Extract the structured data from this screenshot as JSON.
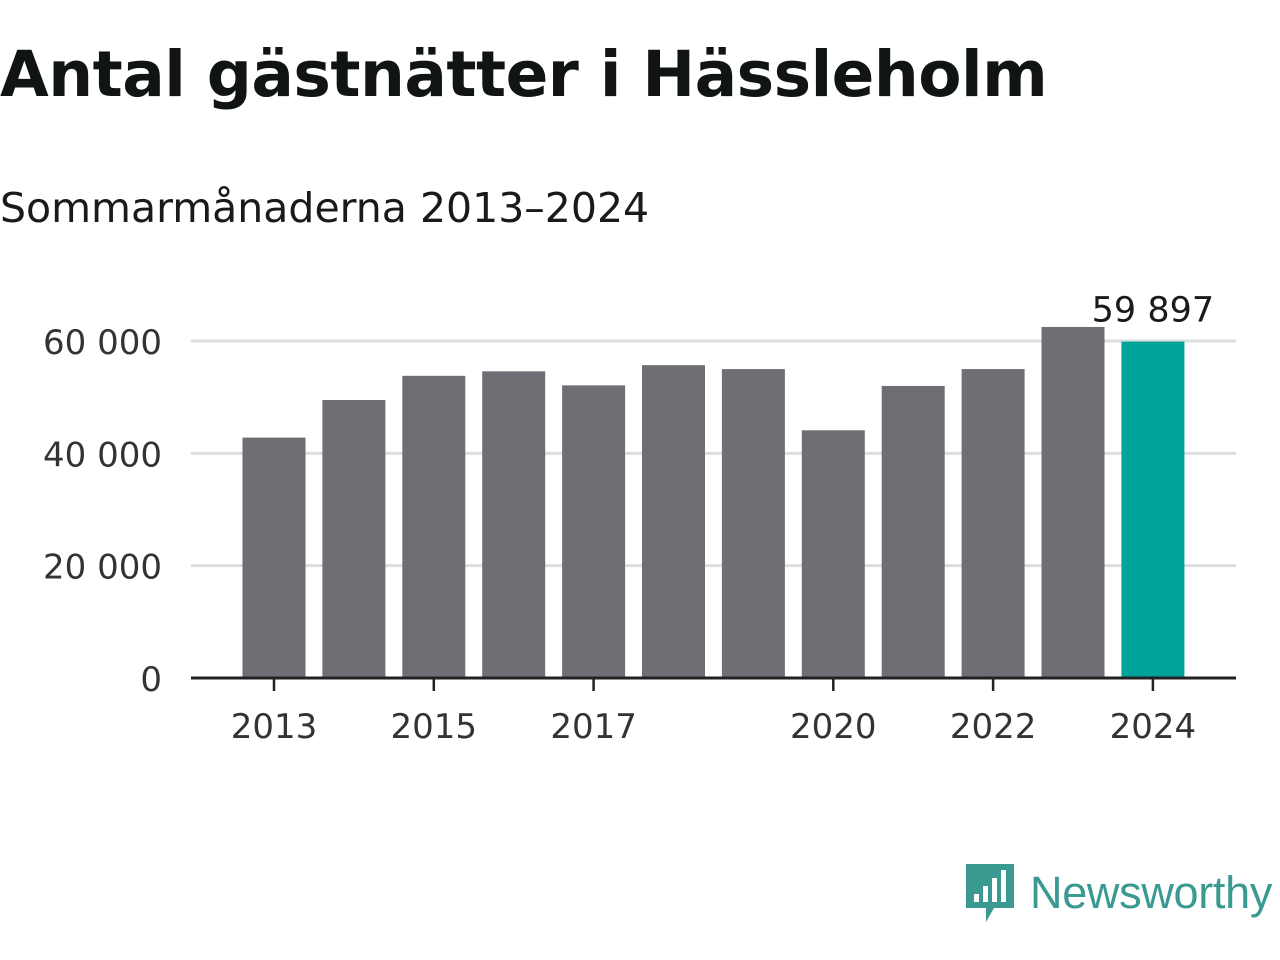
{
  "header": {
    "title": "Antal gästnätter i Hässleholm",
    "subtitle": "Sommarmånaderna 2013–2024"
  },
  "chart_data": {
    "type": "bar",
    "categories": [
      "2013",
      "2014",
      "2015",
      "2016",
      "2017",
      "2018",
      "2019",
      "2020",
      "2021",
      "2022",
      "2023",
      "2024"
    ],
    "values": [
      42800,
      49500,
      53800,
      54600,
      52100,
      55700,
      55000,
      44100,
      52000,
      55000,
      62500,
      59897
    ],
    "title": "Antal gästnätter i Hässleholm",
    "subtitle": "Sommarmånaderna 2013–2024",
    "xlabel": "",
    "ylabel": "",
    "ylim": [
      0,
      60000
    ],
    "yticks": [
      0,
      20000,
      40000,
      60000
    ],
    "ytick_labels": [
      "0",
      "20 000",
      "40 000",
      "60 000"
    ],
    "xtick_labels": [
      "2013",
      "2015",
      "2017",
      "2020",
      "2022",
      "2024"
    ],
    "grid": true,
    "legend": "none",
    "annotations": [
      {
        "category": "2024",
        "label": "59 897"
      }
    ],
    "colors": {
      "default": "#6f6e74",
      "highlight": "#00a398",
      "grid": "#dddddd",
      "axis": "#222222"
    }
  },
  "branding": {
    "logo_text": "Newsworthy",
    "logo_icon": "bar-chart-speech-bubble-icon",
    "color": "#3a9a92"
  }
}
